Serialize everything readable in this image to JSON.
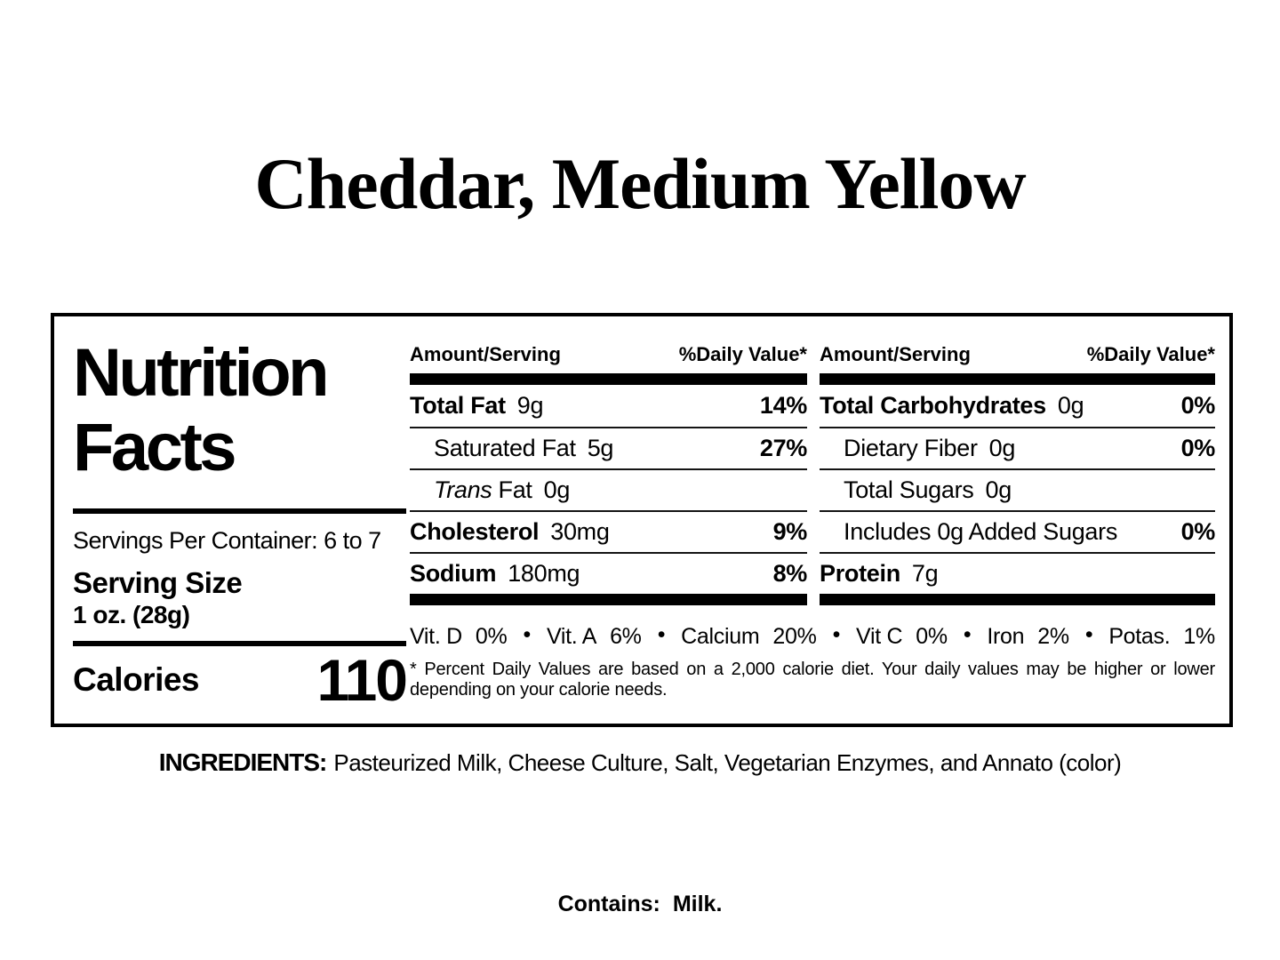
{
  "page": {
    "title": "Cheddar, Medium Yellow",
    "ingredients": {
      "label": "INGREDIENTS:",
      "value": "Pasteurized Milk, Cheese Culture, Salt, Vegetarian Enzymes, and Annato (color)"
    },
    "contains": {
      "label": "Contains:",
      "value": "Milk."
    }
  },
  "label": {
    "heading": {
      "line1": "Nutrition",
      "line2": "Facts"
    },
    "servings_per_container": "Servings Per Container: 6 to 7",
    "serving_size": {
      "label": "Serving Size",
      "value": "1 oz. (28g)"
    },
    "calories": {
      "label": "Calories",
      "value": "110"
    },
    "col1": {
      "header": {
        "amount": "Amount/Serving",
        "daily_value": "%Daily Value*"
      },
      "rows": [
        {
          "name": "Total Fat",
          "value": "9g",
          "dv": "14%"
        },
        {
          "name": "Saturated Fat",
          "value": "5g",
          "dv": "27%"
        },
        {
          "name_italic": "Trans",
          "name": "Fat",
          "value": "0g",
          "dv": ""
        },
        {
          "name": "Cholesterol",
          "value": "30mg",
          "dv": "9%"
        },
        {
          "name": "Sodium",
          "value": "180mg",
          "dv": "8%"
        }
      ]
    },
    "col2": {
      "header": {
        "amount": "Amount/Serving",
        "daily_value": "%Daily Value*"
      },
      "rows": [
        {
          "name": "Total Carbohydrates",
          "value": "0g",
          "dv": "0%"
        },
        {
          "name": "Dietary Fiber",
          "value": "0g",
          "dv": "0%"
        },
        {
          "name": "Total Sugars",
          "value": "0g",
          "dv": ""
        },
        {
          "name": "Includes 0g Added Sugars",
          "value": "",
          "dv": "0%"
        },
        {
          "name": "Protein",
          "value": "7g",
          "dv": ""
        }
      ]
    },
    "vitamins": [
      {
        "label": "Vit. D",
        "value": "0%"
      },
      {
        "label": "Vit. A",
        "value": "6%"
      },
      {
        "label": "Calcium",
        "value": "20%"
      },
      {
        "label": "Vit C",
        "value": "0%"
      },
      {
        "label": "Iron",
        "value": "2%"
      },
      {
        "label": "Potas.",
        "value": "1%"
      }
    ],
    "footnote": "* Percent Daily Values are based on a 2,000 calorie diet. Your daily values may be higher or lower depending on your calorie needs.",
    "colors": {
      "text": "#000000",
      "background": "#ffffff"
    }
  }
}
